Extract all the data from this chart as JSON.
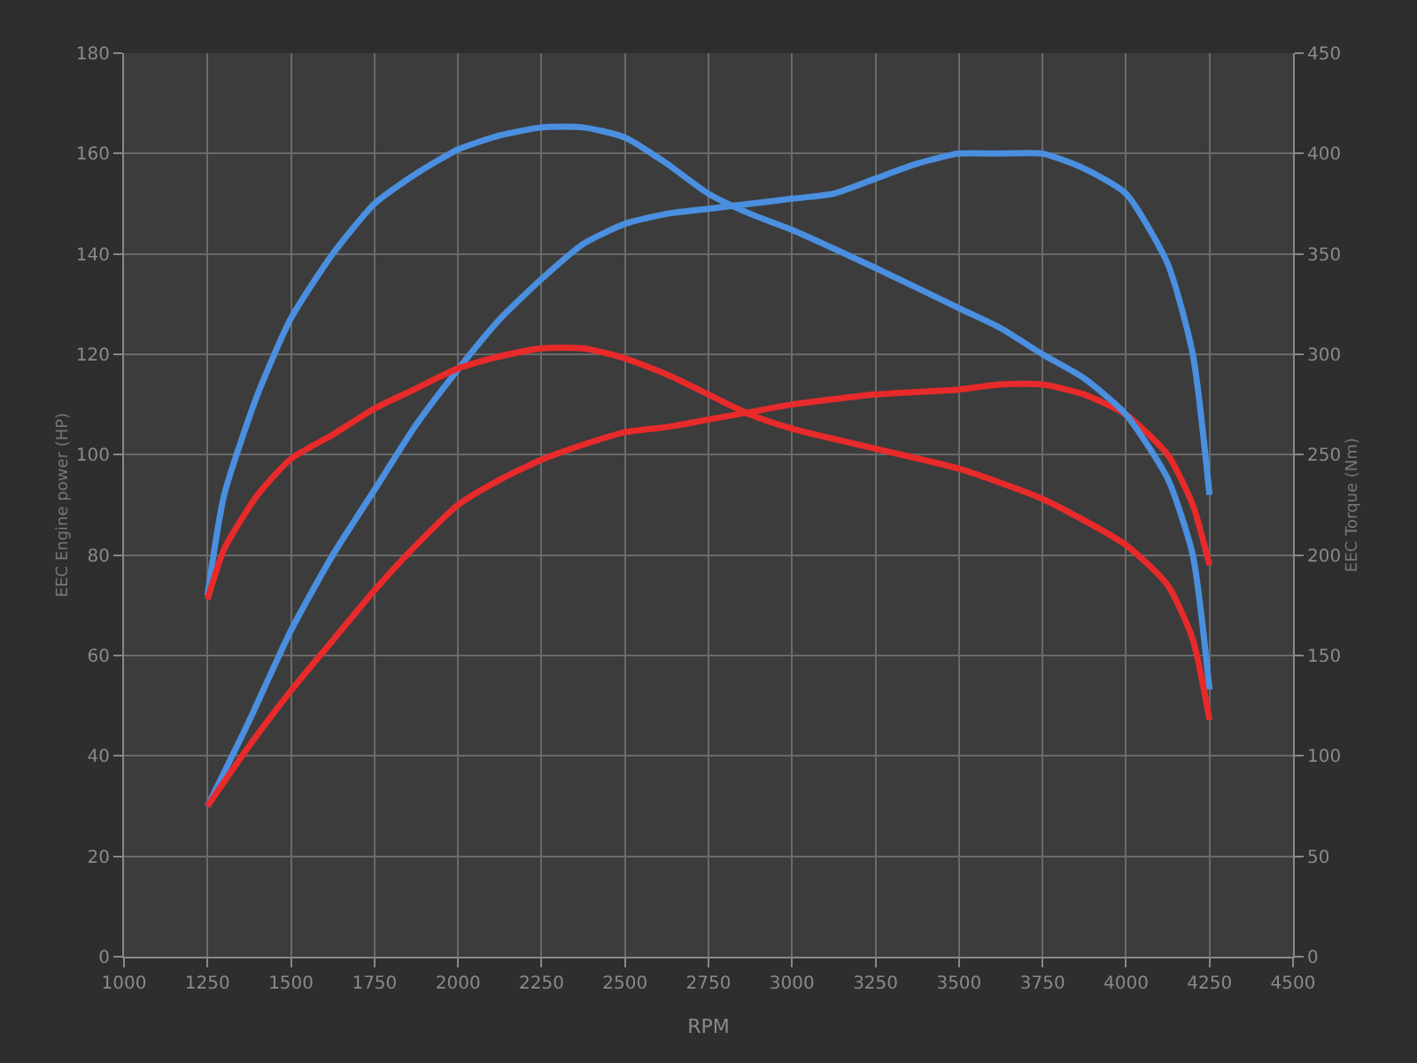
{
  "chart_data": {
    "type": "line",
    "xlabel": "RPM",
    "ylabel": "EEC Engine power (HP)",
    "y2label": "EEC Torque (Nm)",
    "xlim": [
      1000,
      4500
    ],
    "xticks": [
      1000,
      1250,
      1500,
      1750,
      2000,
      2250,
      2500,
      2750,
      3000,
      3250,
      3500,
      3750,
      4000,
      4250,
      4500
    ],
    "ylim": [
      0,
      180
    ],
    "yticks": [
      0,
      20,
      40,
      60,
      80,
      100,
      120,
      140,
      160,
      180
    ],
    "y2lim": [
      0,
      450
    ],
    "y2ticks": [
      0,
      50,
      100,
      150,
      200,
      250,
      300,
      350,
      400,
      450
    ],
    "grid": true,
    "line_style": "solid",
    "series": [
      {
        "color": "#4a8fe0",
        "axis": "y2",
        "x": [
          1250,
          1300,
          1400,
          1500,
          1625,
          1750,
          1875,
          2000,
          2125,
          2250,
          2375,
          2500,
          2625,
          2750,
          2875,
          3000,
          3250,
          3500,
          3625,
          3750,
          3875,
          4000,
          4125,
          4200,
          4250
        ],
        "values": [
          180,
          230,
          280,
          318,
          350,
          375,
          390,
          402,
          409,
          413,
          413,
          408,
          395,
          380,
          370,
          362,
          343,
          323,
          313,
          300,
          288,
          270,
          238,
          200,
          133
        ]
      },
      {
        "color": "#4a8fe0",
        "x": [
          1250,
          1375,
          1500,
          1625,
          1750,
          1875,
          2000,
          2125,
          2250,
          2375,
          2500,
          2625,
          2750,
          2875,
          3000,
          3125,
          3250,
          3375,
          3500,
          3625,
          3750,
          3875,
          4000,
          4125,
          4200,
          4250
        ],
        "values": [
          30,
          47,
          65,
          80,
          93,
          106,
          117,
          127,
          135,
          142,
          146,
          148,
          149,
          150,
          151,
          152,
          155,
          158,
          160,
          160,
          160,
          157,
          152,
          138,
          120,
          92
        ]
      },
      {
        "color": "#e82a2a",
        "axis": "y2",
        "x": [
          1250,
          1300,
          1400,
          1500,
          1625,
          1750,
          1875,
          2000,
          2125,
          2250,
          2375,
          2500,
          2625,
          2750,
          2875,
          3000,
          3250,
          3500,
          3750,
          4000,
          4125,
          4200,
          4250
        ],
        "values": [
          178,
          203,
          230,
          248,
          260,
          273,
          283,
          293,
          299,
          303,
          303,
          298,
          290,
          280,
          270,
          263,
          253,
          243,
          228,
          205,
          185,
          158,
          118
        ]
      },
      {
        "color": "#e82a2a",
        "x": [
          1250,
          1375,
          1500,
          1625,
          1750,
          1875,
          2000,
          2125,
          2250,
          2375,
          2500,
          2625,
          2750,
          2875,
          3000,
          3250,
          3500,
          3625,
          3750,
          3875,
          4000,
          4125,
          4200,
          4250
        ],
        "values": [
          30,
          42,
          53,
          63,
          73,
          82,
          90,
          95,
          99,
          102,
          104.5,
          105.5,
          107,
          108.5,
          110,
          112,
          113,
          114,
          114,
          112,
          108,
          100,
          90,
          78
        ]
      }
    ]
  }
}
